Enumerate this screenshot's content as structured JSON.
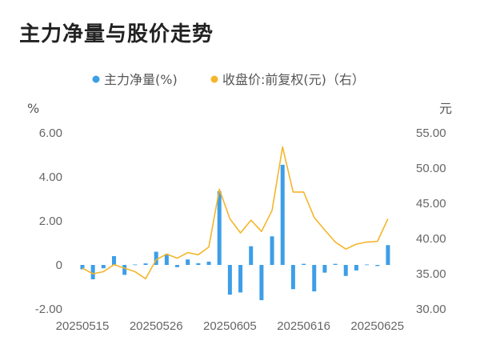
{
  "title": "主力净量与股价走势",
  "chart_data": {
    "type": "bar+line",
    "title": "主力净量与股价走势",
    "legend": {
      "placement": "top-center",
      "items": [
        "主力净量(%)",
        "收盘价:前复权(元)（右）"
      ]
    },
    "left_unit": "%",
    "right_unit": "元",
    "left_ticks": [
      "6.00",
      "4.00",
      "2.00",
      "0",
      "-2.00"
    ],
    "right_ticks": [
      "55.00",
      "50.00",
      "45.00",
      "40.00",
      "35.00",
      "30.00"
    ],
    "ylim_left": [
      -2,
      6
    ],
    "ylim_right": [
      30,
      55
    ],
    "x_labels": [
      "20250515",
      "20250526",
      "20250605",
      "20250616",
      "20250625"
    ],
    "x_label_positions": [
      0,
      7,
      14,
      21,
      28
    ],
    "colors": {
      "bar": "#3d9ee8",
      "line": "#f5b52a"
    },
    "series": [
      {
        "name": "主力净量(%)",
        "type": "bar",
        "values": [
          -0.2,
          -0.65,
          -0.15,
          0.4,
          -0.45,
          0.02,
          0.07,
          0.6,
          0.5,
          -0.1,
          0.25,
          0.08,
          0.15,
          3.35,
          -1.35,
          -1.25,
          0.85,
          -1.6,
          1.3,
          4.55,
          -1.1,
          0.05,
          -1.2,
          -0.35,
          0.05,
          -0.5,
          -0.25,
          0.02,
          -0.05,
          0.9
        ]
      },
      {
        "name": "收盘价:前复权(元)（右）",
        "type": "line",
        "values": [
          35.8,
          35.0,
          35.3,
          36.3,
          35.8,
          35.3,
          34.3,
          37.0,
          37.8,
          37.2,
          38.0,
          37.7,
          38.8,
          47.0,
          42.8,
          40.8,
          42.6,
          41.0,
          44.0,
          53.0,
          46.6,
          46.6,
          43.0,
          41.2,
          39.5,
          38.5,
          39.2,
          39.5,
          39.6,
          42.8
        ]
      }
    ]
  }
}
